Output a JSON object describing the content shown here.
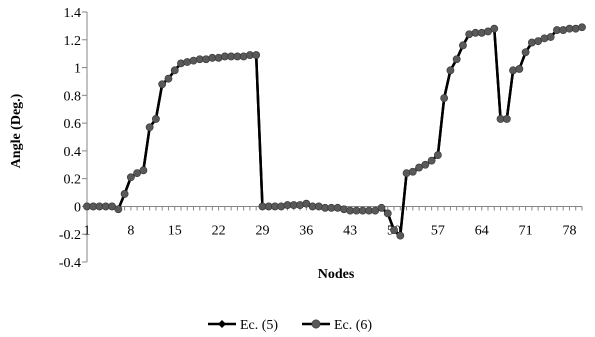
{
  "chart_data": {
    "type": "line",
    "xlabel": "Nodes",
    "ylabel": "Angle (Deg.)",
    "ylim": [
      -0.4,
      1.4
    ],
    "y_ticks": [
      -0.4,
      -0.2,
      0,
      0.2,
      0.4,
      0.6,
      0.8,
      1,
      1.2,
      1.4
    ],
    "y_tick_labels": [
      "-0.4",
      "-0.2",
      "0",
      "0.2",
      "0.4",
      "0.6",
      "0.8",
      "1",
      "1.2",
      "1.4"
    ],
    "xlim": [
      1,
      80
    ],
    "x_ticks": [
      1,
      8,
      15,
      22,
      29,
      36,
      43,
      50,
      57,
      64,
      71,
      78
    ],
    "x_tick_labels": [
      "1",
      "8",
      "15",
      "22",
      "29",
      "36",
      "43",
      "50",
      "57",
      "64",
      "71",
      "78"
    ],
    "x": [
      1,
      2,
      3,
      4,
      5,
      6,
      7,
      8,
      9,
      10,
      11,
      12,
      13,
      14,
      15,
      16,
      17,
      18,
      19,
      20,
      21,
      22,
      23,
      24,
      25,
      26,
      27,
      28,
      29,
      30,
      31,
      32,
      33,
      34,
      35,
      36,
      37,
      38,
      39,
      40,
      41,
      42,
      43,
      44,
      45,
      46,
      47,
      48,
      49,
      50,
      51,
      52,
      53,
      54,
      55,
      56,
      57,
      58,
      59,
      60,
      61,
      62,
      63,
      64,
      65,
      66,
      67,
      68,
      69,
      70,
      71,
      72,
      73,
      74,
      75,
      76,
      77,
      78,
      79,
      80
    ],
    "series": [
      {
        "name": "Ec. (5)",
        "marker": "diamond",
        "values": [
          0,
          0,
          0,
          0,
          0,
          -0.02,
          0.09,
          0.21,
          0.24,
          0.26,
          0.57,
          0.63,
          0.88,
          0.92,
          0.98,
          1.03,
          1.04,
          1.05,
          1.06,
          1.06,
          1.07,
          1.07,
          1.08,
          1.08,
          1.08,
          1.08,
          1.09,
          1.09,
          0,
          0,
          0,
          0,
          0.01,
          0.01,
          0.01,
          0.02,
          0,
          0,
          -0.01,
          -0.01,
          -0.01,
          -0.02,
          -0.03,
          -0.03,
          -0.03,
          -0.03,
          -0.03,
          -0.01,
          -0.05,
          -0.17,
          -0.21,
          0.24,
          0.25,
          0.28,
          0.3,
          0.33,
          0.37,
          0.78,
          0.98,
          1.06,
          1.16,
          1.24,
          1.25,
          1.25,
          1.26,
          1.28,
          0.63,
          0.63,
          0.98,
          0.99,
          1.11,
          1.18,
          1.19,
          1.21,
          1.22,
          1.27,
          1.27,
          1.28,
          1.28,
          1.29
        ]
      },
      {
        "name": "Ec. (6)",
        "marker": "circle",
        "values": [
          0,
          0,
          0,
          0,
          0,
          -0.02,
          0.09,
          0.21,
          0.24,
          0.26,
          0.57,
          0.63,
          0.88,
          0.92,
          0.98,
          1.03,
          1.04,
          1.05,
          1.06,
          1.06,
          1.07,
          1.07,
          1.08,
          1.08,
          1.08,
          1.08,
          1.09,
          1.09,
          0,
          0,
          0,
          0,
          0.01,
          0.01,
          0.01,
          0.02,
          0,
          0,
          -0.01,
          -0.01,
          -0.01,
          -0.02,
          -0.03,
          -0.03,
          -0.03,
          -0.03,
          -0.03,
          -0.01,
          -0.05,
          -0.17,
          -0.21,
          0.24,
          0.25,
          0.28,
          0.3,
          0.33,
          0.37,
          0.78,
          0.98,
          1.06,
          1.16,
          1.24,
          1.25,
          1.25,
          1.26,
          1.28,
          0.63,
          0.63,
          0.98,
          0.99,
          1.11,
          1.18,
          1.19,
          1.21,
          1.22,
          1.27,
          1.27,
          1.28,
          1.28,
          1.29
        ]
      }
    ],
    "legend_position": "bottom",
    "grid": false,
    "colors": {
      "ec5": "#000000",
      "ec6": "#595959",
      "axis": "#868686"
    }
  }
}
